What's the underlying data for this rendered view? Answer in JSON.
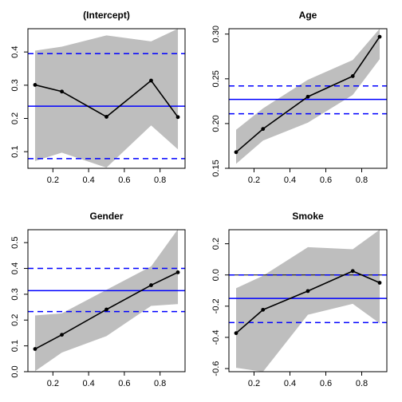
{
  "chart_data": [
    {
      "type": "line",
      "title": "(Intercept)",
      "x": [
        0.1,
        0.25,
        0.5,
        0.75,
        0.9
      ],
      "estimate": [
        0.301,
        0.281,
        0.205,
        0.314,
        0.204
      ],
      "band_lower": [
        0.072,
        0.097,
        0.052,
        0.179,
        0.107
      ],
      "band_upper": [
        0.404,
        0.416,
        0.45,
        0.432,
        0.47
      ],
      "ols_estimate": 0.237,
      "ols_ci": [
        0.079,
        0.395
      ],
      "zero_line": false,
      "xlim": [
        0.06,
        0.94
      ],
      "ylim": [
        0.05,
        0.47
      ],
      "x_ticks": [
        "0.2",
        "0.4",
        "0.6",
        "0.8"
      ],
      "y_ticks": [
        "0.1",
        "0.2",
        "0.3",
        "0.4"
      ]
    },
    {
      "type": "line",
      "title": "Age",
      "x": [
        0.1,
        0.25,
        0.5,
        0.75,
        0.9
      ],
      "estimate": [
        0.168,
        0.194,
        0.23,
        0.253,
        0.297
      ],
      "band_lower": [
        0.155,
        0.181,
        0.201,
        0.232,
        0.272
      ],
      "band_upper": [
        0.193,
        0.217,
        0.249,
        0.271,
        0.306
      ],
      "ols_estimate": 0.227,
      "ols_ci": [
        0.211,
        0.242
      ],
      "zero_line": false,
      "xlim": [
        0.06,
        0.94
      ],
      "ylim": [
        0.15,
        0.306
      ],
      "x_ticks": [
        "0.2",
        "0.4",
        "0.6",
        "0.8"
      ],
      "y_ticks": [
        "0.15",
        "0.20",
        "0.25",
        "0.30"
      ]
    },
    {
      "type": "line",
      "title": "Gender",
      "x": [
        0.1,
        0.25,
        0.5,
        0.75,
        0.9
      ],
      "estimate": [
        0.088,
        0.143,
        0.241,
        0.335,
        0.385
      ],
      "band_lower": [
        0.002,
        0.074,
        0.138,
        0.255,
        0.262
      ],
      "band_upper": [
        0.218,
        0.226,
        0.317,
        0.408,
        0.552
      ],
      "ols_estimate": 0.314,
      "ols_ci": [
        0.233,
        0.4
      ],
      "zero_line": true,
      "xlim": [
        0.06,
        0.94
      ],
      "ylim": [
        0.0,
        0.55
      ],
      "x_ticks": [
        "0.2",
        "0.4",
        "0.6",
        "0.8"
      ],
      "y_ticks": [
        "0.0",
        "0.1",
        "0.2",
        "0.3",
        "0.4",
        "0.5"
      ]
    },
    {
      "type": "line",
      "title": "Smoke",
      "x": [
        0.1,
        0.25,
        0.5,
        0.75,
        0.9
      ],
      "estimate": [
        -0.373,
        -0.223,
        -0.103,
        0.025,
        -0.05
      ],
      "band_lower": [
        -0.595,
        -0.62,
        -0.255,
        -0.185,
        -0.31
      ],
      "band_upper": [
        -0.085,
        -0.005,
        0.178,
        0.165,
        0.29
      ],
      "ols_estimate": -0.15,
      "ols_ci": [
        -0.305,
        0.0
      ],
      "zero_line": true,
      "xlim": [
        0.06,
        0.94
      ],
      "ylim": [
        -0.62,
        0.29
      ],
      "x_ticks": [
        "0.2",
        "0.4",
        "0.6",
        "0.8"
      ],
      "y_ticks": [
        "-0.6",
        "-0.4",
        "-0.2",
        "0.0",
        "0.2"
      ]
    }
  ],
  "colors": {
    "band": "#bebebe",
    "estimate_line": "#000000",
    "ols_line": "#0000ff",
    "zero_line": "#000000",
    "axis": "#000000"
  }
}
